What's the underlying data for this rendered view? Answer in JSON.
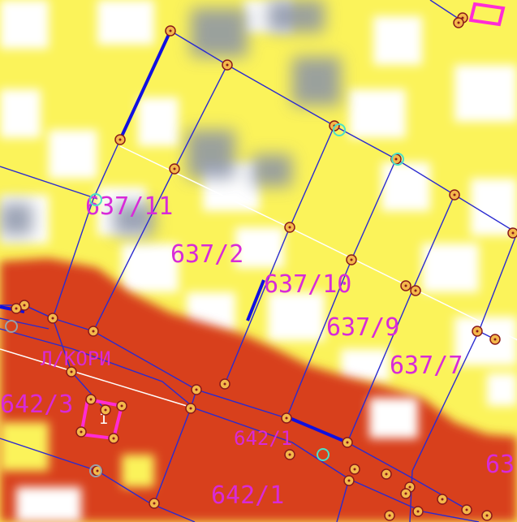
{
  "map": {
    "type": "cadastral-parcel-overlay",
    "colors": {
      "background_light": "#fbf35a",
      "background_white": "#ffffff",
      "shade_gray": "#8a93a8",
      "zone_red": "#d8401a",
      "boundary": "#2a2ad0",
      "boundary_bold": "#1010e0",
      "easement": "#ffffff",
      "label": "#d82ad8",
      "vertex_fill": "#f4b84a",
      "vertex_stroke": "#8a1a1a",
      "building": "#ff2bd6"
    },
    "parcels": [
      {
        "id": "p637-11",
        "label": "637/11"
      },
      {
        "id": "p637-2",
        "label": "637/2"
      },
      {
        "id": "p637-10",
        "label": "637/10"
      },
      {
        "id": "p637-9",
        "label": "637/9"
      },
      {
        "id": "p637-7",
        "label": "637/7"
      },
      {
        "id": "p642-3",
        "label": "642/3"
      },
      {
        "id": "p642-1",
        "label": "642/1"
      },
      {
        "id": "p642-1b",
        "label": "642/1"
      },
      {
        "id": "p-edge",
        "label": "63"
      },
      {
        "id": "p-road",
        "label": "Л/КОРИ"
      }
    ],
    "building": {
      "number": "1"
    }
  }
}
